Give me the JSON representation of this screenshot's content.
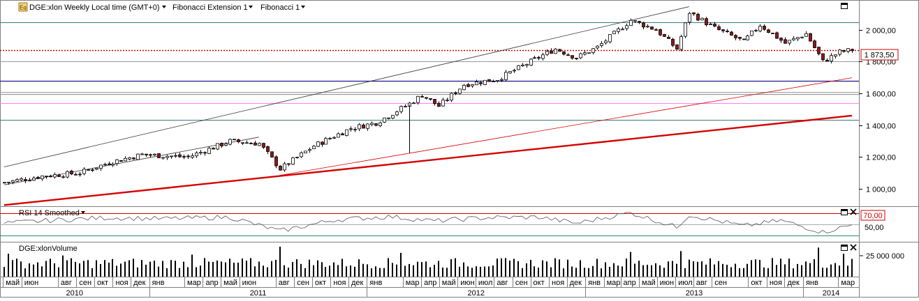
{
  "header": {
    "symbol_label": "DGE:xlon Weekly Local time (GMT+0)",
    "study1_label": "Fibonacci Extension 1",
    "study2_label": "Fibonacci 1",
    "symbol_icon": "eq-icon",
    "dropdown_icon": "triangle-down-icon",
    "maximize_icon": "maximize-icon"
  },
  "rsi_panel": {
    "title": "RSI 14 Smoothed",
    "level_label": "70,00",
    "mid_label": "50,00",
    "close_icon": "close-icon"
  },
  "volume_panel": {
    "title": "DGE:xlonVolume",
    "axis_label": "25 000 000"
  },
  "last_price_label": "1 873,50",
  "colors": {
    "up_candle": "#ffffff",
    "down_candle": "#8b1a1a",
    "last_price_line": "#cc0000",
    "trend_main": "#d40000",
    "fib_blue": "#1a1a8c",
    "fib_teal": "#3a7a7a",
    "fib_pink": "#ff80ff",
    "fib_gray": "#999999",
    "rsi_line": "#555555",
    "volume_bar": "#000000"
  },
  "chart_data": {
    "type": "candlestick",
    "timeframe": "Weekly",
    "x": {
      "range": [
        "2010-05-03",
        "2014-03-24"
      ],
      "month_labels": [
        "май",
        "июн",
        "авг",
        "сен",
        "окт",
        "ноя",
        "дек",
        "янв",
        "мар",
        "апр",
        "май",
        "июн",
        "авг",
        "сен",
        "окт",
        "ноя",
        "дек",
        "янв",
        "мар",
        "апр",
        "май",
        "июн",
        "июл",
        "авг",
        "сен",
        "окт",
        "ноя",
        "дек",
        "янв",
        "мар",
        "апр",
        "май",
        "июн",
        "июл",
        "авг",
        "сен",
        "окт",
        "ноя",
        "дек",
        "янв",
        "мар"
      ],
      "years": [
        "2010",
        "2011",
        "2012",
        "2013",
        "2014"
      ]
    },
    "price_axis": {
      "ticks": [
        "1 000,00",
        "1 200,00",
        "1 400,00",
        "1 600,00",
        "1 800,00",
        "2 000,00"
      ],
      "tick_values": [
        1000,
        1200,
        1400,
        1600,
        1800,
        2000
      ],
      "ylim": [
        895,
        2165
      ]
    },
    "last_price": 1873.5,
    "horizontal_levels": [
      2046,
      1873.5,
      1802,
      1677,
      1607,
      1594,
      1537,
      1432
    ],
    "trendlines": [
      {
        "from": [
          "2010-05-03",
          898
        ],
        "to": [
          "2014-03-24",
          1460
        ]
      },
      {
        "from": [
          "2011-08-08",
          1085
        ],
        "to": [
          "2014-03-24",
          1698
        ]
      },
      {
        "from": [
          "2010-05-03",
          1138
        ],
        "to": [
          "2013-06-24",
          2145
        ]
      },
      {
        "from": [
          "2010-05-03",
          1025
        ],
        "to": [
          "2011-07-04",
          1325
        ]
      }
    ],
    "price_path": [
      [
        "2010-05-03",
        1040
      ],
      [
        "2010-07-05",
        1080
      ],
      [
        "2010-09-06",
        1100
      ],
      [
        "2010-10-25",
        1165
      ],
      [
        "2010-12-20",
        1215
      ],
      [
        "2011-03-07",
        1200
      ],
      [
        "2011-05-16",
        1300
      ],
      [
        "2011-07-04",
        1285
      ],
      [
        "2011-08-08",
        1125
      ],
      [
        "2011-10-03",
        1270
      ],
      [
        "2011-12-05",
        1380
      ],
      [
        "2012-01-16",
        1415
      ],
      [
        "2012-03-12",
        1535
      ],
      [
        "2012-04-02",
        1590
      ],
      [
        "2012-04-30",
        1520
      ],
      [
        "2012-06-11",
        1655
      ],
      [
        "2012-08-06",
        1690
      ],
      [
        "2012-10-01",
        1800
      ],
      [
        "2012-11-12",
        1880
      ],
      [
        "2012-12-17",
        1825
      ],
      [
        "2013-01-21",
        1890
      ],
      [
        "2013-03-18",
        2060
      ],
      [
        "2013-04-29",
        2000
      ],
      [
        "2013-06-03",
        1880
      ],
      [
        "2013-06-24",
        2110
      ],
      [
        "2013-08-05",
        2010
      ],
      [
        "2013-09-23",
        1925
      ],
      [
        "2013-10-21",
        2030
      ],
      [
        "2013-12-02",
        1915
      ],
      [
        "2014-01-06",
        1975
      ],
      [
        "2014-02-03",
        1800
      ],
      [
        "2014-03-03",
        1860
      ],
      [
        "2014-03-24",
        1873.5
      ]
    ],
    "rsi": {
      "period": 14,
      "levels": [
        70,
        50,
        30
      ],
      "ylim": [
        20,
        80
      ],
      "path": [
        [
          "2010-05-03",
          52
        ],
        [
          "2010-08-02",
          58
        ],
        [
          "2010-10-25",
          62
        ],
        [
          "2011-01-24",
          60
        ],
        [
          "2011-05-16",
          63
        ],
        [
          "2011-08-08",
          38
        ],
        [
          "2011-11-07",
          58
        ],
        [
          "2012-02-06",
          64
        ],
        [
          "2012-04-23",
          56
        ],
        [
          "2012-07-16",
          62
        ],
        [
          "2012-10-15",
          63
        ],
        [
          "2012-12-17",
          52
        ],
        [
          "2013-03-18",
          71
        ],
        [
          "2013-06-03",
          45
        ],
        [
          "2013-06-24",
          67
        ],
        [
          "2013-09-23",
          47
        ],
        [
          "2013-11-25",
          57
        ],
        [
          "2014-02-03",
          36
        ],
        [
          "2014-03-24",
          49
        ]
      ]
    },
    "volume": {
      "ylim": [
        0,
        38000000
      ],
      "tick_values": [
        25000000
      ],
      "typical": 17000000,
      "peaks": [
        [
          "2010-05-10",
          26000000
        ],
        [
          "2010-08-09",
          24000000
        ],
        [
          "2011-03-14",
          25000000
        ],
        [
          "2011-08-08",
          34000000
        ],
        [
          "2012-02-27",
          27000000
        ],
        [
          "2012-12-17",
          10000000
        ],
        [
          "2013-03-18",
          28000000
        ],
        [
          "2013-06-10",
          29000000
        ],
        [
          "2014-01-27",
          33000000
        ],
        [
          "2014-03-10",
          26000000
        ]
      ]
    }
  }
}
